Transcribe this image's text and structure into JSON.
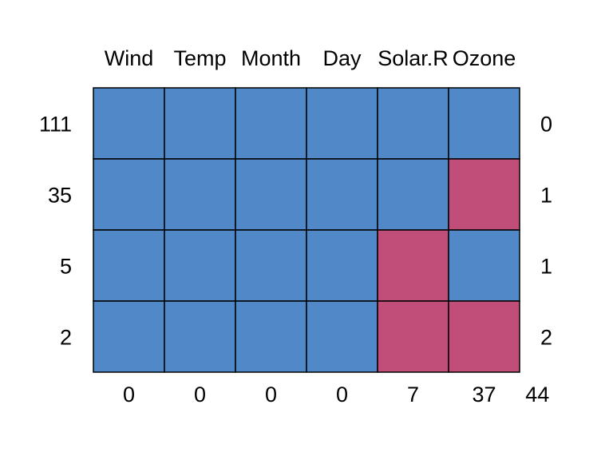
{
  "chart_data": {
    "type": "heatmap",
    "title": "",
    "columns": [
      "Wind",
      "Temp",
      "Month",
      "Day",
      "Solar.R",
      "Ozone"
    ],
    "row_counts": [
      111,
      35,
      5,
      2
    ],
    "row_missing_totals": [
      0,
      1,
      1,
      2
    ],
    "column_missing_counts": [
      0,
      0,
      0,
      0,
      7,
      37
    ],
    "total_missing": 44,
    "cells": [
      [
        1,
        1,
        1,
        1,
        1,
        1
      ],
      [
        1,
        1,
        1,
        1,
        1,
        0
      ],
      [
        1,
        1,
        1,
        1,
        0,
        1
      ],
      [
        1,
        1,
        1,
        1,
        0,
        0
      ]
    ],
    "colors": {
      "observed": "#5088C8",
      "missing": "#C04E78",
      "border": "#000000"
    }
  }
}
